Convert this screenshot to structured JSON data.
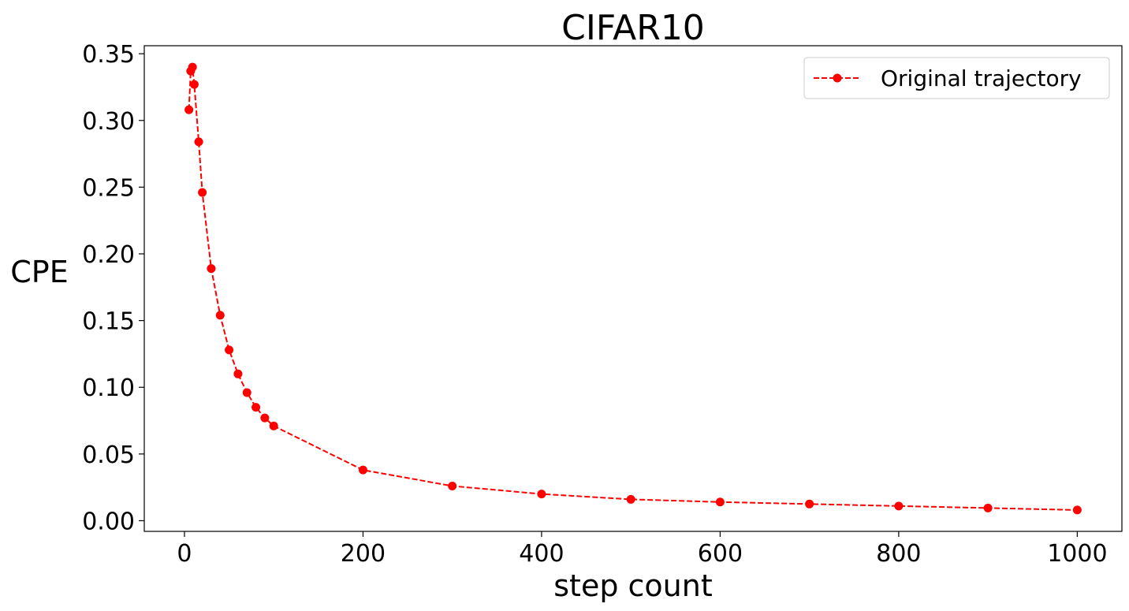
{
  "chart_data": {
    "type": "line",
    "title": "CIFAR10",
    "xlabel": "step count",
    "ylabel": "CPE",
    "xlim": [
      -45,
      1050
    ],
    "ylim": [
      -0.008,
      0.356
    ],
    "xticks": [
      0,
      200,
      400,
      600,
      800,
      1000
    ],
    "xtick_labels": [
      "0",
      "200",
      "400",
      "600",
      "800",
      "1000"
    ],
    "yticks": [
      0.0,
      0.05,
      0.1,
      0.15,
      0.2,
      0.25,
      0.3,
      0.35
    ],
    "ytick_labels": [
      "0.00",
      "0.05",
      "0.10",
      "0.15",
      "0.20",
      "0.25",
      "0.30",
      "0.35"
    ],
    "grid": false,
    "legend_position": "top-right",
    "series": [
      {
        "name": "Original trajectory",
        "color": "#ff0000",
        "line_style": "dashed",
        "marker": "circle",
        "x": [
          5,
          7,
          9,
          11,
          16,
          20,
          30,
          40,
          50,
          60,
          70,
          80,
          90,
          100,
          200,
          300,
          400,
          500,
          600,
          700,
          800,
          900,
          1000
        ],
        "y": [
          0.308,
          0.337,
          0.34,
          0.327,
          0.284,
          0.246,
          0.189,
          0.154,
          0.128,
          0.11,
          0.096,
          0.085,
          0.077,
          0.071,
          0.038,
          0.026,
          0.02,
          0.016,
          0.014,
          0.0125,
          0.011,
          0.0095,
          0.008
        ]
      }
    ]
  }
}
